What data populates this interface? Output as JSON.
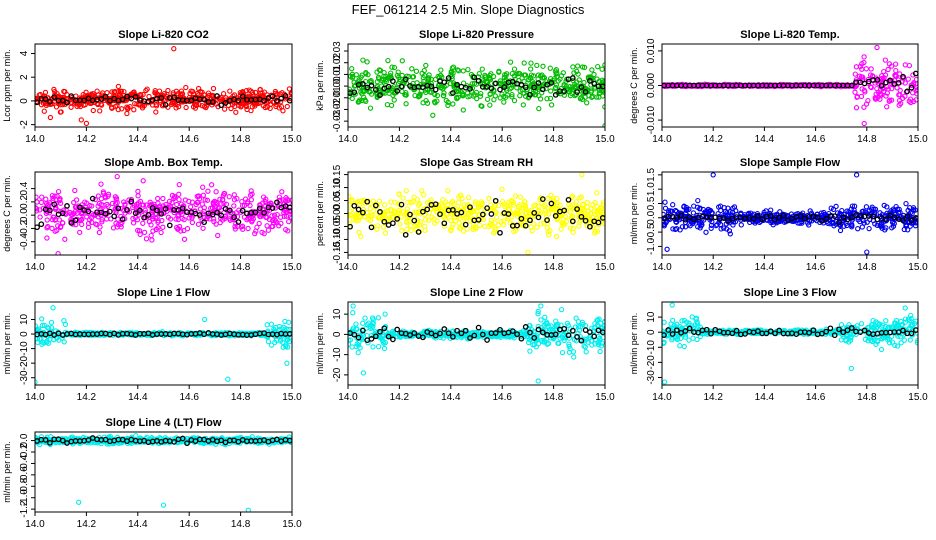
{
  "suptitle": "FEF_061214  2.5 Min. Slope Diagnostics",
  "colors": {
    "red": "#ff0000",
    "green": "#00bb00",
    "magenta": "#ff00ff",
    "yellow": "#ffff00",
    "blue": "#0000ee",
    "cyan": "#00eeee",
    "black": "#000000"
  },
  "chart_data": [
    {
      "type": "scatter",
      "title": "Slope Li-820 CO2",
      "ylabel": "Lcor ppm per min.",
      "color": "red",
      "xlim": [
        14.0,
        15.0
      ],
      "ylim": [
        -2.2,
        4.8
      ],
      "xticks": [
        14.0,
        14.2,
        14.4,
        14.6,
        14.8,
        15.0
      ],
      "yticks": [
        -2,
        0,
        2,
        4
      ],
      "ytick_labels": [
        "-2",
        "0",
        "2",
        "4"
      ],
      "series": [
        {
          "name": "raw",
          "center": 0.1,
          "spread": [
            [
              14.0,
              15.0,
              0.6
            ]
          ],
          "outliers": [
            [
              14.54,
              4.4
            ],
            [
              14.2,
              -1.9
            ],
            [
              14.06,
              -1.4
            ],
            [
              14.18,
              -1.6
            ]
          ]
        },
        {
          "name": "avg",
          "amp": 0.3
        }
      ]
    },
    {
      "type": "scatter",
      "title": "Slope Li-820 Pressure",
      "ylabel": "kPa per min.",
      "color": "green",
      "xlim": [
        14.0,
        15.0
      ],
      "ylim": [
        -0.035,
        0.036
      ],
      "xticks": [
        14.0,
        14.2,
        14.4,
        14.6,
        14.8,
        15.0
      ],
      "yticks": [
        -0.03,
        -0.02,
        -0.01,
        0.0,
        0.01,
        0.02,
        0.03
      ],
      "ytick_labels": [
        "-0.03",
        "-0.02",
        "-0.01",
        "0.00",
        "0.01",
        "0.02",
        "0.03"
      ],
      "series": [
        {
          "name": "raw",
          "center": 0.0,
          "spread": [
            [
              14.0,
              15.0,
              0.012
            ]
          ],
          "outliers": [
            [
              14.33,
              -0.025
            ],
            [
              15.0,
              -0.034
            ]
          ]
        },
        {
          "name": "avg",
          "amp": 0.006
        }
      ]
    },
    {
      "type": "scatter",
      "title": "Slope Li-820 Temp.",
      "ylabel": "degrees C per min.",
      "color": "magenta",
      "xlim": [
        14.0,
        15.0
      ],
      "ylim": [
        -0.012,
        0.012
      ],
      "xticks": [
        14.0,
        14.2,
        14.4,
        14.6,
        14.8,
        15.0
      ],
      "yticks": [
        -0.01,
        0.0,
        0.01
      ],
      "ytick_labels": [
        "-0.010",
        "0.000",
        "0.010"
      ],
      "series": [
        {
          "name": "raw",
          "center": 0.0,
          "spread": [
            [
              14.0,
              14.75,
              0.0002
            ],
            [
              14.75,
              15.0,
              0.005
            ]
          ],
          "outliers": [
            [
              14.84,
              0.011
            ],
            [
              14.79,
              -0.011
            ]
          ]
        },
        {
          "name": "avg",
          "amp": 0.0,
          "amp_late": 0.003
        }
      ]
    },
    {
      "type": "scatter",
      "title": "Slope Amb. Box Temp.",
      "ylabel": "degrees C per min.",
      "color": "magenta",
      "xlim": [
        14.0,
        15.0
      ],
      "ylim": [
        -0.6,
        0.65
      ],
      "xticks": [
        14.0,
        14.2,
        14.4,
        14.6,
        14.8,
        15.0
      ],
      "yticks": [
        -0.4,
        -0.2,
        0.0,
        0.2,
        0.4
      ],
      "ytick_labels": [
        "-0.4",
        "-0.2",
        "0.0",
        "0.2",
        "0.4"
      ],
      "series": [
        {
          "name": "raw",
          "center": 0.05,
          "spread": [
            [
              14.0,
              15.0,
              0.22
            ]
          ],
          "outliers": [
            [
              14.32,
              0.58
            ],
            [
              14.09,
              -0.58
            ]
          ]
        },
        {
          "name": "avg",
          "amp": 0.15
        }
      ]
    },
    {
      "type": "scatter",
      "title": "Slope Gas Stream RH",
      "ylabel": "percent per min.",
      "color": "yellow",
      "xlim": [
        14.0,
        15.0
      ],
      "ylim": [
        -0.16,
        0.16
      ],
      "xticks": [
        14.0,
        14.2,
        14.4,
        14.6,
        14.8,
        15.0
      ],
      "yticks": [
        -0.15,
        -0.1,
        -0.05,
        0.0,
        0.05,
        0.1,
        0.15
      ],
      "ytick_labels": [
        "-0.15",
        "-0.10",
        "-0.05",
        "0.00",
        "0.05",
        "0.10",
        "0.15"
      ],
      "series": [
        {
          "name": "raw",
          "center": 0.0,
          "spread": [
            [
              14.0,
              15.0,
              0.05
            ]
          ],
          "outliers": [
            [
              14.7,
              -0.15
            ],
            [
              14.91,
              0.15
            ]
          ]
        },
        {
          "name": "avg",
          "amp": 0.06
        }
      ]
    },
    {
      "type": "scatter",
      "title": "Slope Sample Flow",
      "ylabel": "ml/min per min.",
      "color": "blue",
      "xlim": [
        14.0,
        15.0
      ],
      "ylim": [
        -1.3,
        1.6
      ],
      "xticks": [
        14.0,
        14.2,
        14.4,
        14.6,
        14.8,
        15.0
      ],
      "yticks": [
        -1.0,
        -0.5,
        0.0,
        0.5,
        1.0,
        1.5
      ],
      "ytick_labels": [
        "-1.0",
        "-0.5",
        "0.0",
        "0.5",
        "1.0",
        "1.5"
      ],
      "series": [
        {
          "name": "raw",
          "center": 0.0,
          "spread": [
            [
              14.0,
              14.3,
              0.35
            ],
            [
              14.3,
              14.65,
              0.15
            ],
            [
              14.65,
              15.0,
              0.3
            ]
          ],
          "outliers": [
            [
              14.2,
              1.5
            ],
            [
              14.76,
              1.5
            ],
            [
              14.8,
              -1.2
            ],
            [
              14.02,
              -1.1
            ]
          ]
        },
        {
          "name": "avg",
          "amp": 0.12
        }
      ]
    },
    {
      "type": "scatter",
      "title": "Slope Line 1 Flow",
      "ylabel": "ml/min per min.",
      "color": "cyan",
      "xlim": [
        14.0,
        15.0
      ],
      "ylim": [
        -35,
        22
      ],
      "xticks": [
        14.0,
        14.2,
        14.4,
        14.6,
        14.8,
        15.0
      ],
      "yticks": [
        -30,
        -20,
        -10,
        0,
        10
      ],
      "ytick_labels": [
        "-30",
        "-20",
        "-10",
        "0",
        "10"
      ],
      "series": [
        {
          "name": "raw",
          "center": 0.0,
          "spread": [
            [
              14.0,
              14.12,
              6
            ],
            [
              14.12,
              14.9,
              0.8
            ],
            [
              14.9,
              15.0,
              6
            ]
          ],
          "outliers": [
            [
              14.0,
              -33
            ],
            [
              14.75,
              -31
            ],
            [
              14.07,
              18
            ],
            [
              14.66,
              10
            ],
            [
              14.98,
              -20
            ]
          ]
        },
        {
          "name": "avg",
          "amp": 0.6
        }
      ]
    },
    {
      "type": "scatter",
      "title": "Slope Line 2 Flow",
      "ylabel": "ml/min per min.",
      "color": "cyan",
      "xlim": [
        14.0,
        15.0
      ],
      "ylim": [
        -25,
        16
      ],
      "xticks": [
        14.0,
        14.2,
        14.4,
        14.6,
        14.8,
        15.0
      ],
      "yticks": [
        -20,
        -10,
        0,
        10
      ],
      "ytick_labels": [
        "-20",
        "-10",
        "0",
        "10"
      ],
      "series": [
        {
          "name": "raw",
          "center": 0.0,
          "spread": [
            [
              14.0,
              14.15,
              6
            ],
            [
              14.15,
              14.7,
              1.2
            ],
            [
              14.7,
              15.0,
              6
            ]
          ],
          "outliers": [
            [
              14.74,
              -23
            ],
            [
              14.02,
              14
            ],
            [
              14.75,
              14
            ],
            [
              14.06,
              -19
            ]
          ]
        },
        {
          "name": "avg",
          "amp": 2.5
        }
      ]
    },
    {
      "type": "scatter",
      "title": "Slope Line 3 Flow",
      "ylabel": "ml/min per min.",
      "color": "cyan",
      "xlim": [
        14.0,
        15.0
      ],
      "ylim": [
        -35,
        20
      ],
      "xticks": [
        14.0,
        14.2,
        14.4,
        14.6,
        14.8,
        15.0
      ],
      "yticks": [
        -30,
        -20,
        -10,
        0,
        10
      ],
      "ytick_labels": [
        "-30",
        "-20",
        "-10",
        "0",
        "10"
      ],
      "series": [
        {
          "name": "raw",
          "center": 0.0,
          "spread": [
            [
              14.0,
              14.15,
              6
            ],
            [
              14.15,
              14.7,
              1.0
            ],
            [
              14.7,
              15.0,
              6
            ]
          ],
          "outliers": [
            [
              14.01,
              -33
            ],
            [
              14.74,
              -24
            ],
            [
              14.04,
              18
            ],
            [
              14.95,
              16
            ]
          ]
        },
        {
          "name": "avg",
          "amp": 2.0
        }
      ]
    },
    {
      "type": "scatter",
      "title": "Slope Line 4 (LT) Flow",
      "ylabel": "ml/min per min.",
      "color": "cyan",
      "xlim": [
        14.0,
        15.0
      ],
      "ylim": [
        -1.25,
        0.15
      ],
      "xticks": [
        14.0,
        14.2,
        14.4,
        14.6,
        14.8,
        15.0
      ],
      "yticks": [
        -1.2,
        -1.0,
        -0.8,
        -0.6,
        -0.4,
        -0.2,
        0.0
      ],
      "ytick_labels": [
        "-1.2",
        "-1.0",
        "-0.8",
        "-0.6",
        "-0.4",
        "-0.2",
        "0.0"
      ],
      "series": [
        {
          "name": "raw",
          "center": 0.0,
          "spread": [
            [
              14.0,
              15.0,
              0.04
            ]
          ],
          "outliers": [
            [
              14.17,
              -1.08
            ],
            [
              14.5,
              -1.13
            ],
            [
              14.83,
              -1.22
            ],
            [
              14.74,
              -0.07
            ]
          ]
        },
        {
          "name": "avg",
          "amp": 0.03
        }
      ]
    }
  ]
}
